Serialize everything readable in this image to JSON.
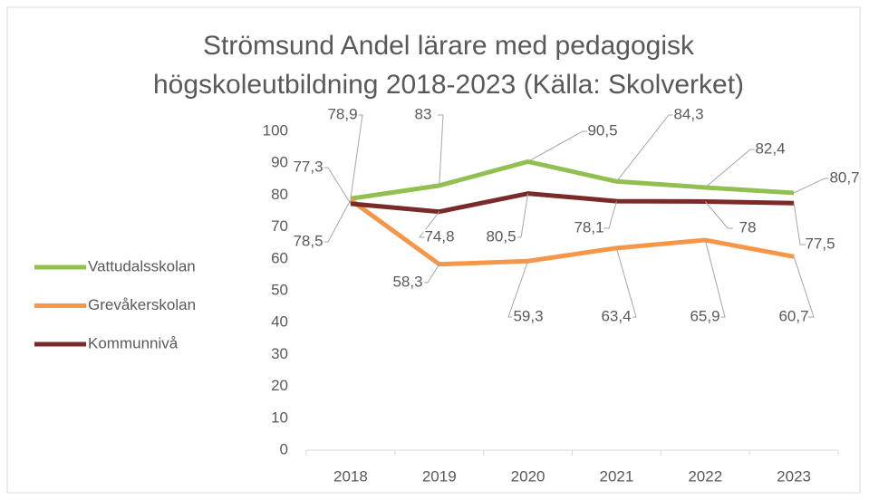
{
  "chart_data": {
    "type": "line",
    "title": [
      "Strömsund Andel lärare med pedagogisk",
      "högskoleutbildning 2018-2023 (Källa: Skolverket)"
    ],
    "categories": [
      "2018",
      "2019",
      "2020",
      "2021",
      "2022",
      "2023"
    ],
    "series": [
      {
        "name": "Vattudalsskolan",
        "color": "#92c050",
        "values": [
          78.9,
          83,
          90.5,
          84.3,
          82.4,
          80.7
        ],
        "value_labels": [
          "78,9",
          "83",
          "90,5",
          "84,3",
          "82,4",
          "80,7"
        ]
      },
      {
        "name": "Grevåkerskolan",
        "color": "#f79646",
        "values": [
          78.5,
          58.3,
          59.3,
          63.4,
          65.9,
          60.7
        ],
        "value_labels": [
          "78,5",
          "58,3",
          "59,3",
          "63,4",
          "65,9",
          "60,7"
        ]
      },
      {
        "name": "Kommunnivå",
        "color": "#7b2a2a",
        "values": [
          77.3,
          74.8,
          80.5,
          78.1,
          78,
          77.5
        ],
        "value_labels": [
          "77,3",
          "74,8",
          "80,5",
          "78,1",
          "78",
          "77,5"
        ]
      }
    ],
    "ylim": [
      0,
      100
    ],
    "yticks": [
      0,
      10,
      20,
      30,
      40,
      50,
      60,
      70,
      80,
      90,
      100
    ],
    "grid": false,
    "legend": "left"
  }
}
